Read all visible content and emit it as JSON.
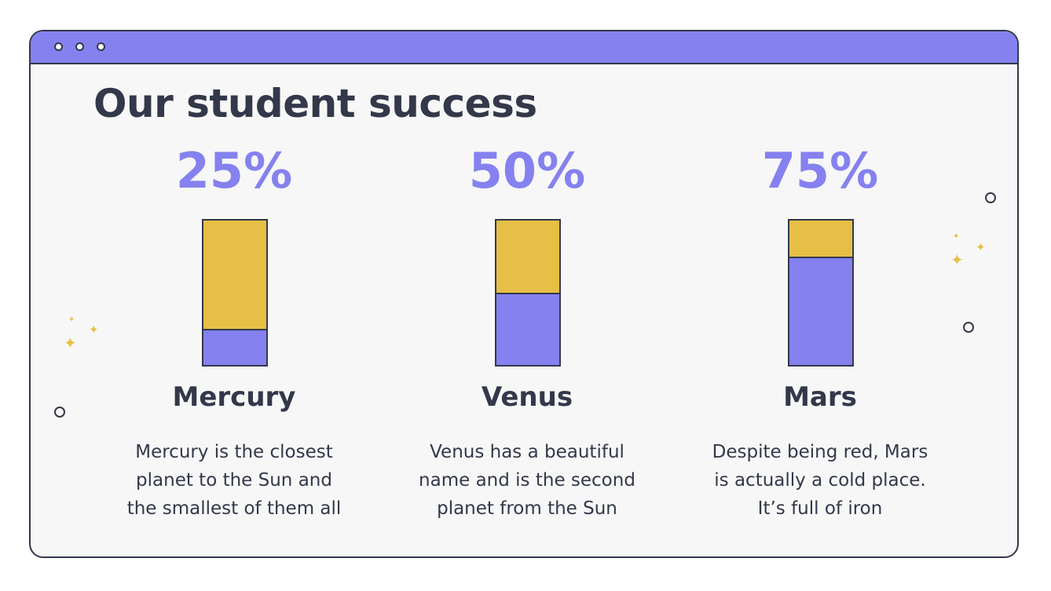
{
  "title": "Our student success",
  "colors": {
    "accent": "#8581ef",
    "fill": "#e6c046",
    "ink": "#33384a",
    "background": "#f7f7f7"
  },
  "window": {
    "icons": [
      "window-dot-icon",
      "window-dot-icon",
      "window-dot-icon"
    ]
  },
  "items": [
    {
      "percent": "25%",
      "value": 0.25,
      "name": "Mercury",
      "description": [
        "Mercury is the closest",
        "planet to the Sun and",
        "the smallest of them all"
      ]
    },
    {
      "percent": "50%",
      "value": 0.5,
      "name": "Venus",
      "description": [
        "Venus has a beautiful",
        "name and is the second",
        "planet from the Sun"
      ]
    },
    {
      "percent": "75%",
      "value": 0.75,
      "name": "Mars",
      "description": [
        "Despite being red, Mars",
        "is actually a cold place.",
        "It’s full of iron"
      ]
    }
  ],
  "decorations": {
    "sparkle_icon": "sparkle-icon",
    "circle_icon": "circle-icon"
  }
}
